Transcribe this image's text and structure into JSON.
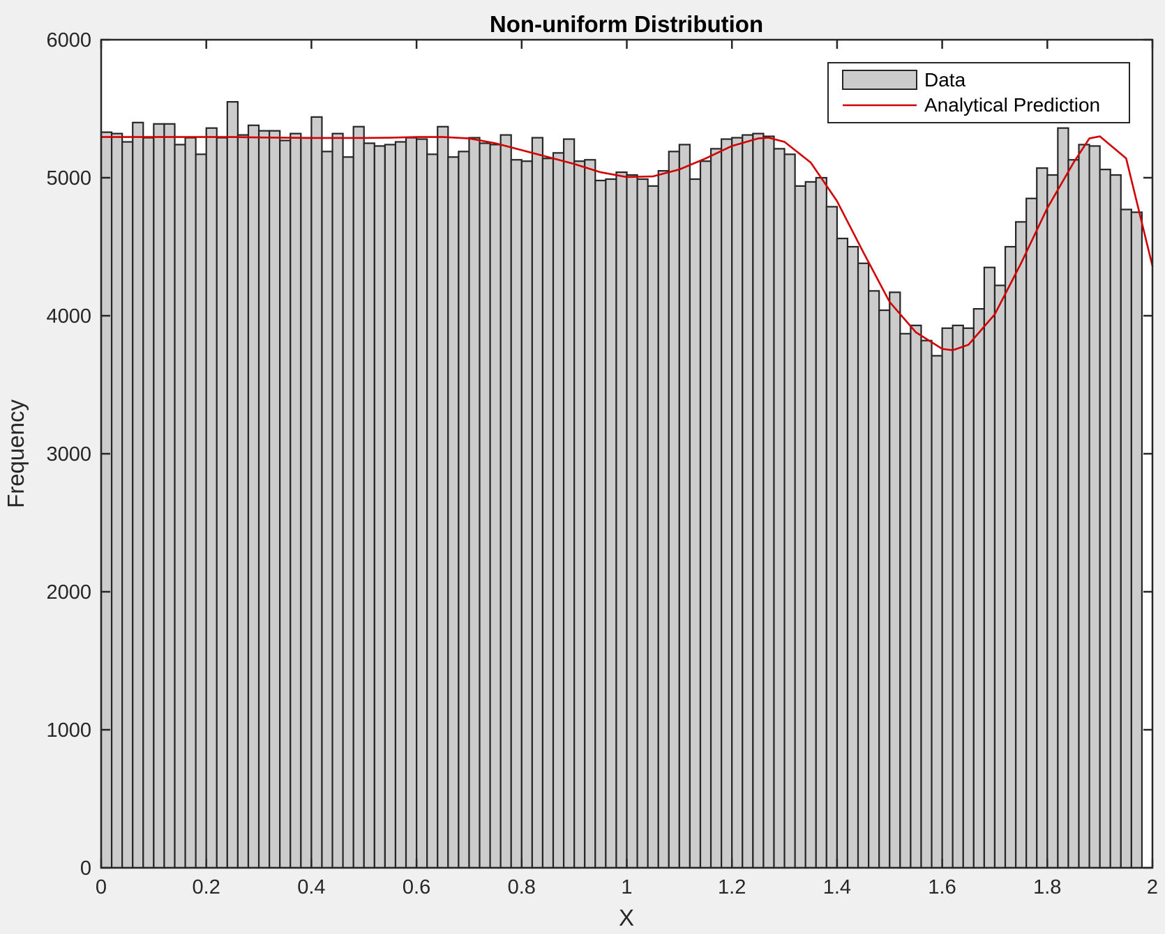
{
  "chart_data": {
    "type": "bar",
    "title": "Non-uniform Distribution",
    "xlabel": "X",
    "ylabel": "Frequency",
    "xlim": [
      0,
      2
    ],
    "ylim": [
      0,
      6000
    ],
    "xticks": [
      0,
      0.2,
      0.4,
      0.6,
      0.8,
      1,
      1.2,
      1.4,
      1.6,
      1.8,
      2
    ],
    "xtick_labels": [
      "0",
      "0.2",
      "0.4",
      "0.6",
      "0.8",
      "1",
      "1.2",
      "1.4",
      "1.6",
      "1.8",
      "2"
    ],
    "yticks": [
      0,
      1000,
      2000,
      3000,
      4000,
      5000,
      6000
    ],
    "ytick_labels": [
      "0",
      "1000",
      "2000",
      "3000",
      "4000",
      "5000",
      "6000"
    ],
    "grid": false,
    "legend_position": "top-right",
    "bin_width": 0.02,
    "series": [
      {
        "name": "Data",
        "kind": "histogram",
        "color": "#cccccc",
        "edge_color": "#262626",
        "values": [
          5330,
          5320,
          5260,
          5400,
          5290,
          5390,
          5390,
          5240,
          5290,
          5170,
          5360,
          5290,
          5550,
          5310,
          5380,
          5340,
          5340,
          5270,
          5320,
          5290,
          5440,
          5190,
          5320,
          5150,
          5370,
          5250,
          5230,
          5240,
          5260,
          5290,
          5280,
          5170,
          5370,
          5150,
          5190,
          5290,
          5250,
          5240,
          5310,
          5130,
          5120,
          5290,
          5140,
          5180,
          5280,
          5120,
          5130,
          4980,
          4990,
          5040,
          5020,
          4990,
          4940,
          5050,
          5190,
          5240,
          4990,
          5120,
          5210,
          5280,
          5290,
          5310,
          5320,
          5300,
          5210,
          5170,
          4940,
          4970,
          5000,
          4790,
          4560,
          4500,
          4380,
          4180,
          4040,
          4170,
          3870,
          3930,
          3820,
          3710,
          3910,
          3930,
          3910,
          4050,
          4350,
          4220,
          4500,
          4680,
          4850,
          5070,
          5020,
          5360,
          5130,
          5240,
          5230,
          5060,
          5020,
          4770,
          4750
        ]
      },
      {
        "name": "Analytical Prediction",
        "kind": "line",
        "color": "#d10000",
        "x": [
          0,
          0.05,
          0.1,
          0.15,
          0.2,
          0.25,
          0.3,
          0.35,
          0.4,
          0.45,
          0.5,
          0.55,
          0.6,
          0.65,
          0.7,
          0.75,
          0.8,
          0.85,
          0.9,
          0.95,
          1.0,
          1.05,
          1.1,
          1.15,
          1.2,
          1.25,
          1.27,
          1.3,
          1.35,
          1.4,
          1.45,
          1.5,
          1.55,
          1.6,
          1.62,
          1.65,
          1.7,
          1.75,
          1.8,
          1.85,
          1.88,
          1.9,
          1.95,
          2.0
        ],
        "y": [
          5295,
          5295,
          5295,
          5295,
          5295,
          5295,
          5292,
          5290,
          5288,
          5288,
          5288,
          5290,
          5295,
          5295,
          5285,
          5250,
          5200,
          5150,
          5100,
          5040,
          5005,
          5010,
          5060,
          5140,
          5230,
          5285,
          5290,
          5260,
          5110,
          4830,
          4460,
          4100,
          3880,
          3760,
          3750,
          3790,
          4010,
          4380,
          4780,
          5110,
          5285,
          5300,
          5140,
          4360
        ]
      }
    ]
  }
}
